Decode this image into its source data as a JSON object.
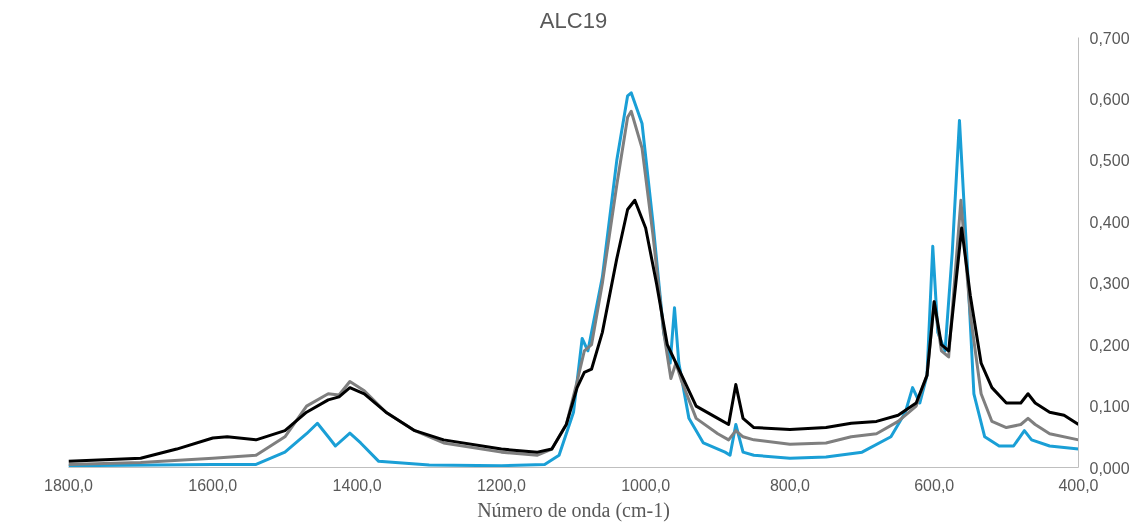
{
  "chart_data": {
    "type": "line",
    "title": "ALC19",
    "xlabel": "Número de onda (cm-1)",
    "xlim": [
      1800,
      400
    ],
    "xticks": [
      {
        "value": 1800,
        "label": "1800,0"
      },
      {
        "value": 1600,
        "label": "1600,0"
      },
      {
        "value": 1400,
        "label": "1400,0"
      },
      {
        "value": 1200,
        "label": "1200,0"
      },
      {
        "value": 1000,
        "label": "1000,0"
      },
      {
        "value": 800,
        "label": "800,0"
      },
      {
        "value": 600,
        "label": "600,0"
      },
      {
        "value": 400,
        "label": "400,0"
      }
    ],
    "ylim": [
      0,
      0.7
    ],
    "yticks": [
      {
        "value": 0,
        "label": "0,000"
      },
      {
        "value": 0.1,
        "label": "0,100"
      },
      {
        "value": 0.2,
        "label": "0,200"
      },
      {
        "value": 0.3,
        "label": "0,300"
      },
      {
        "value": 0.4,
        "label": "0,400"
      },
      {
        "value": 0.5,
        "label": "0,500"
      },
      {
        "value": 0.6,
        "label": "0,600"
      },
      {
        "value": 0.7,
        "label": "0,700"
      }
    ],
    "grid": false,
    "series": [
      {
        "color": "#1a9fd6",
        "x": [
          1800,
          1600,
          1540,
          1500,
          1470,
          1455,
          1440,
          1430,
          1410,
          1395,
          1370,
          1300,
          1200,
          1140,
          1120,
          1100,
          1088,
          1080,
          1060,
          1040,
          1025,
          1020,
          1005,
          990,
          975,
          966,
          960,
          954,
          940,
          920,
          890,
          883,
          875,
          865,
          850,
          800,
          750,
          700,
          660,
          640,
          630,
          620,
          610,
          602,
          595,
          585,
          575,
          565,
          555,
          545,
          530,
          510,
          490,
          475,
          465,
          440,
          400
        ],
        "values": [
          0.003,
          0.005,
          0.005,
          0.025,
          0.055,
          0.072,
          0.05,
          0.035,
          0.056,
          0.04,
          0.01,
          0.004,
          0.003,
          0.005,
          0.02,
          0.09,
          0.21,
          0.19,
          0.31,
          0.5,
          0.605,
          0.61,
          0.56,
          0.4,
          0.22,
          0.17,
          0.26,
          0.17,
          0.08,
          0.04,
          0.025,
          0.02,
          0.07,
          0.025,
          0.02,
          0.015,
          0.017,
          0.025,
          0.05,
          0.09,
          0.13,
          0.105,
          0.15,
          0.36,
          0.22,
          0.19,
          0.35,
          0.565,
          0.35,
          0.12,
          0.05,
          0.035,
          0.035,
          0.06,
          0.045,
          0.035,
          0.03
        ]
      },
      {
        "color": "#7f7f7f",
        "x": [
          1800,
          1700,
          1600,
          1540,
          1500,
          1470,
          1440,
          1425,
          1410,
          1390,
          1360,
          1320,
          1280,
          1200,
          1150,
          1130,
          1110,
          1095,
          1085,
          1075,
          1060,
          1040,
          1025,
          1020,
          1005,
          990,
          975,
          965,
          958,
          950,
          930,
          900,
          885,
          875,
          865,
          850,
          800,
          750,
          715,
          680,
          650,
          625,
          610,
          600,
          590,
          580,
          570,
          563,
          550,
          535,
          520,
          500,
          480,
          470,
          460,
          440,
          400
        ],
        "values": [
          0.005,
          0.008,
          0.015,
          0.02,
          0.05,
          0.1,
          0.12,
          0.118,
          0.14,
          0.125,
          0.09,
          0.06,
          0.04,
          0.025,
          0.02,
          0.03,
          0.07,
          0.14,
          0.19,
          0.2,
          0.3,
          0.46,
          0.57,
          0.58,
          0.52,
          0.38,
          0.22,
          0.145,
          0.17,
          0.14,
          0.08,
          0.055,
          0.045,
          0.06,
          0.05,
          0.045,
          0.038,
          0.04,
          0.05,
          0.055,
          0.075,
          0.1,
          0.15,
          0.27,
          0.19,
          0.18,
          0.33,
          0.435,
          0.25,
          0.12,
          0.075,
          0.065,
          0.07,
          0.08,
          0.07,
          0.055,
          0.045
        ]
      },
      {
        "color": "#000000",
        "x": [
          1800,
          1700,
          1650,
          1600,
          1580,
          1540,
          1500,
          1470,
          1440,
          1425,
          1410,
          1390,
          1360,
          1320,
          1280,
          1200,
          1150,
          1130,
          1110,
          1095,
          1085,
          1075,
          1060,
          1040,
          1025,
          1015,
          1000,
          985,
          970,
          960,
          950,
          930,
          900,
          885,
          875,
          865,
          850,
          800,
          750,
          715,
          680,
          650,
          625,
          610,
          600,
          590,
          580,
          570,
          562,
          550,
          535,
          520,
          500,
          480,
          470,
          460,
          440,
          420,
          400
        ],
        "values": [
          0.01,
          0.015,
          0.03,
          0.048,
          0.05,
          0.045,
          0.06,
          0.09,
          0.11,
          0.115,
          0.13,
          0.12,
          0.09,
          0.06,
          0.045,
          0.03,
          0.025,
          0.03,
          0.07,
          0.13,
          0.155,
          0.16,
          0.22,
          0.34,
          0.42,
          0.435,
          0.39,
          0.3,
          0.2,
          0.175,
          0.15,
          0.1,
          0.08,
          0.07,
          0.135,
          0.08,
          0.065,
          0.062,
          0.065,
          0.072,
          0.075,
          0.085,
          0.105,
          0.15,
          0.27,
          0.2,
          0.19,
          0.3,
          0.39,
          0.28,
          0.17,
          0.13,
          0.105,
          0.105,
          0.12,
          0.105,
          0.09,
          0.085,
          0.07
        ]
      }
    ]
  }
}
